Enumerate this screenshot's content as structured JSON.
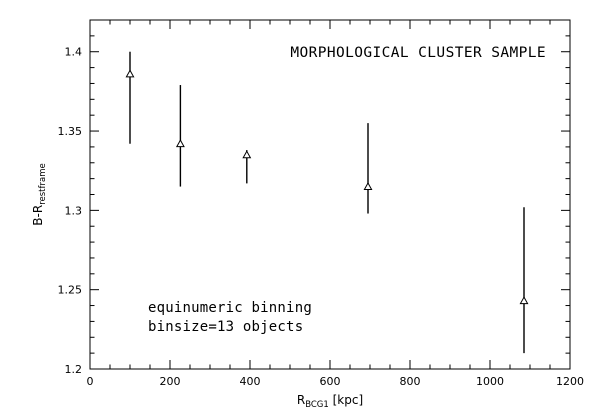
{
  "chart_data": {
    "type": "scatter",
    "title": "MORPHOLOGICAL CLUSTER SAMPLE",
    "xlabel": {
      "main": "R",
      "sub": "BCG1",
      "suffix": " [kpc]"
    },
    "ylabel": {
      "main": "B-R",
      "sub": "restframe"
    },
    "xlim": [
      0,
      1200
    ],
    "ylim": [
      1.2,
      1.42
    ],
    "xticks": [
      0,
      200,
      400,
      600,
      800,
      1000,
      1200
    ],
    "yticks": [
      1.2,
      1.25,
      1.3,
      1.35,
      1.4
    ],
    "ytick_labels": [
      "1.2",
      "1.25",
      "1.3",
      "1.35",
      "1.4"
    ],
    "marker": "open-triangle",
    "annotations": [
      "equinumeric binning",
      "binsize=13 objects"
    ],
    "series": [
      {
        "points": [
          {
            "x": 100,
            "y": 1.386,
            "ylow": 1.342,
            "yhigh": 1.4
          },
          {
            "x": 226,
            "y": 1.342,
            "ylow": 1.315,
            "yhigh": 1.379
          },
          {
            "x": 392,
            "y": 1.335,
            "ylow": 1.317,
            "yhigh": 1.338
          },
          {
            "x": 695,
            "y": 1.315,
            "ylow": 1.298,
            "yhigh": 1.355
          },
          {
            "x": 1085,
            "y": 1.243,
            "ylow": 1.21,
            "yhigh": 1.302
          }
        ]
      }
    ]
  }
}
